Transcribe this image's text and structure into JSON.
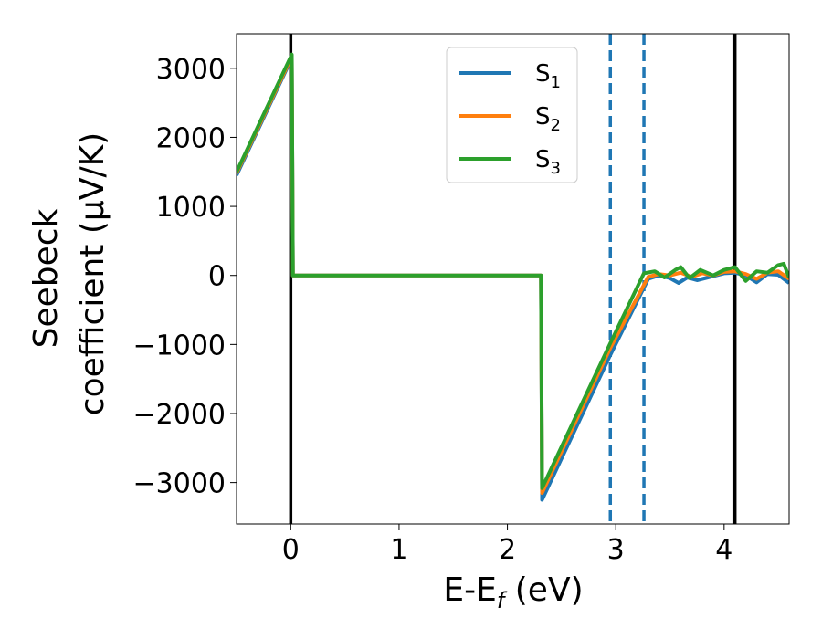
{
  "chart_data": {
    "type": "line",
    "xlabel": "E-E",
    "xlabel_sub": "f",
    "xlabel_unit": " (eV)",
    "ylabel_line1": "Seebeck",
    "ylabel_line2": "coefficient  (μV/K)",
    "xlim": [
      -0.5,
      4.6
    ],
    "ylim": [
      -3600,
      3500
    ],
    "xticks": [
      0,
      1,
      2,
      3,
      4
    ],
    "yticks": [
      -3000,
      -2000,
      -1000,
      0,
      1000,
      2000,
      3000
    ],
    "ytick_labels": [
      "−3000",
      "−2000",
      "−1000",
      "0",
      "1000",
      "2000",
      "3000"
    ],
    "legend_position": "top-center",
    "grid": false,
    "vlines": [
      {
        "x": 0.0,
        "style": "solid",
        "color": "#000000"
      },
      {
        "x": 4.1,
        "style": "solid",
        "color": "#000000"
      },
      {
        "x": 2.95,
        "style": "dashed",
        "color": "#1f77b4"
      },
      {
        "x": 3.26,
        "style": "dashed",
        "color": "#1f77b4"
      }
    ],
    "series": [
      {
        "name": "S",
        "sub": "1",
        "color": "#1f77b4",
        "x": [
          -0.5,
          0.01,
          0.02,
          2.31,
          2.32,
          2.95,
          3.3,
          3.4,
          3.5,
          3.58,
          3.66,
          3.75,
          3.85,
          4.0,
          4.1,
          4.2,
          4.3,
          4.4,
          4.5,
          4.6
        ],
        "y": [
          1450,
          3150,
          0,
          0,
          -3250,
          -1150,
          -50,
          0,
          -40,
          -110,
          -30,
          -70,
          -30,
          30,
          40,
          0,
          -100,
          20,
          10,
          -110
        ]
      },
      {
        "name": "S",
        "sub": "2",
        "color": "#ff7f0e",
        "x": [
          -0.5,
          0.01,
          0.02,
          2.31,
          2.32,
          2.95,
          3.3,
          3.4,
          3.5,
          3.6,
          3.7,
          3.8,
          3.9,
          4.0,
          4.1,
          4.2,
          4.3,
          4.4,
          4.5,
          4.6
        ],
        "y": [
          1480,
          3170,
          0,
          0,
          -3150,
          -1050,
          -20,
          20,
          0,
          40,
          -20,
          30,
          0,
          50,
          60,
          20,
          -50,
          40,
          60,
          -50
        ]
      },
      {
        "name": "S",
        "sub": "3",
        "color": "#2ca02c",
        "x": [
          -0.5,
          0.01,
          0.02,
          2.31,
          2.32,
          2.95,
          3.26,
          3.36,
          3.45,
          3.55,
          3.6,
          3.68,
          3.78,
          3.9,
          4.0,
          4.1,
          4.2,
          4.3,
          4.4,
          4.5,
          4.55,
          4.6
        ],
        "y": [
          1500,
          3200,
          0,
          0,
          -3080,
          -980,
          30,
          60,
          -30,
          80,
          120,
          -40,
          80,
          0,
          80,
          120,
          -80,
          60,
          40,
          150,
          170,
          -30
        ]
      }
    ]
  }
}
